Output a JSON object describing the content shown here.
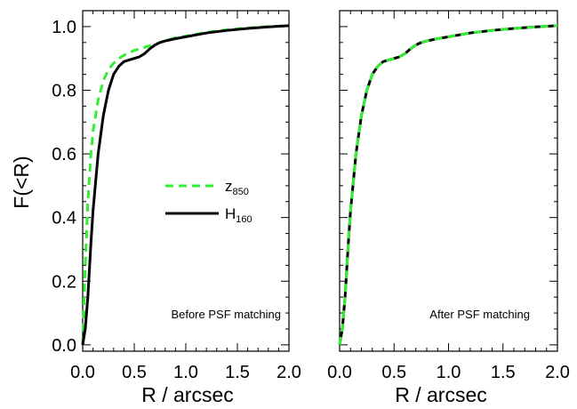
{
  "figure": {
    "ylabel": "F(<R)",
    "xlabel": "R / arcsec"
  },
  "colors": {
    "z850": "#33ee33",
    "H160": "#000000"
  },
  "legend": [
    {
      "key": "z850",
      "label": "z",
      "sub": "850",
      "style": "dashed"
    },
    {
      "key": "H160",
      "label": "H",
      "sub": "160",
      "style": "solid"
    }
  ],
  "chart_data": [
    {
      "type": "line",
      "annotation": "Before PSF matching",
      "xlabel": "R / arcsec",
      "ylabel": "F(<R)",
      "xlim": [
        0.0,
        2.0
      ],
      "ylim": [
        -0.02,
        1.05
      ],
      "xticks": [
        "0.0",
        "0.5",
        "1.0",
        "1.5",
        "2.0"
      ],
      "yticks": [
        "0.0",
        "0.2",
        "0.4",
        "0.6",
        "0.8",
        "1.0"
      ],
      "grid": false,
      "series": [
        {
          "name": "z850",
          "style": "dashed",
          "x": [
            0.0,
            0.025,
            0.05,
            0.08,
            0.1,
            0.15,
            0.2,
            0.25,
            0.3,
            0.35,
            0.4,
            0.5,
            0.6,
            0.7,
            0.8,
            0.9,
            1.0,
            1.2,
            1.4,
            1.6,
            1.8,
            2.0
          ],
          "y": [
            0.0,
            0.25,
            0.45,
            0.6,
            0.67,
            0.77,
            0.83,
            0.865,
            0.885,
            0.9,
            0.91,
            0.925,
            0.935,
            0.945,
            0.955,
            0.965,
            0.97,
            0.982,
            0.99,
            0.996,
            1.0,
            1.003
          ]
        },
        {
          "name": "H160",
          "style": "solid",
          "x": [
            0.0,
            0.025,
            0.05,
            0.08,
            0.1,
            0.15,
            0.2,
            0.25,
            0.3,
            0.35,
            0.4,
            0.45,
            0.5,
            0.55,
            0.6,
            0.65,
            0.7,
            0.75,
            0.8,
            0.9,
            1.0,
            1.2,
            1.4,
            1.6,
            1.8,
            2.0
          ],
          "y": [
            0.0,
            0.05,
            0.15,
            0.32,
            0.42,
            0.6,
            0.72,
            0.8,
            0.85,
            0.875,
            0.89,
            0.895,
            0.9,
            0.905,
            0.915,
            0.93,
            0.942,
            0.95,
            0.955,
            0.962,
            0.968,
            0.98,
            0.988,
            0.994,
            0.999,
            1.003
          ]
        }
      ]
    },
    {
      "type": "line",
      "annotation": "After PSF matching",
      "xlabel": "R / arcsec",
      "ylabel": "",
      "xlim": [
        0.0,
        2.0
      ],
      "ylim": [
        -0.02,
        1.05
      ],
      "xticks": [
        "0.0",
        "0.5",
        "1.0",
        "1.5",
        "2.0"
      ],
      "yticks": [],
      "grid": false,
      "series": [
        {
          "name": "H160",
          "style": "solid",
          "x": [
            0.0,
            0.025,
            0.05,
            0.08,
            0.1,
            0.15,
            0.2,
            0.25,
            0.3,
            0.35,
            0.4,
            0.45,
            0.5,
            0.55,
            0.6,
            0.65,
            0.7,
            0.75,
            0.8,
            0.9,
            1.0,
            1.2,
            1.4,
            1.6,
            1.8,
            2.0
          ],
          "y": [
            0.0,
            0.05,
            0.15,
            0.32,
            0.42,
            0.6,
            0.72,
            0.8,
            0.85,
            0.875,
            0.89,
            0.895,
            0.9,
            0.905,
            0.915,
            0.93,
            0.942,
            0.95,
            0.955,
            0.962,
            0.968,
            0.98,
            0.988,
            0.994,
            0.999,
            1.003
          ]
        },
        {
          "name": "z850",
          "style": "dashed",
          "x": [
            0.0,
            0.025,
            0.05,
            0.08,
            0.1,
            0.15,
            0.2,
            0.25,
            0.3,
            0.35,
            0.4,
            0.45,
            0.5,
            0.55,
            0.6,
            0.65,
            0.7,
            0.75,
            0.8,
            0.9,
            1.0,
            1.2,
            1.4,
            1.6,
            1.8,
            2.0
          ],
          "y": [
            0.0,
            0.05,
            0.15,
            0.32,
            0.42,
            0.6,
            0.72,
            0.8,
            0.85,
            0.875,
            0.89,
            0.895,
            0.9,
            0.905,
            0.915,
            0.93,
            0.942,
            0.95,
            0.955,
            0.962,
            0.968,
            0.98,
            0.988,
            0.994,
            0.999,
            1.003
          ]
        }
      ]
    }
  ]
}
